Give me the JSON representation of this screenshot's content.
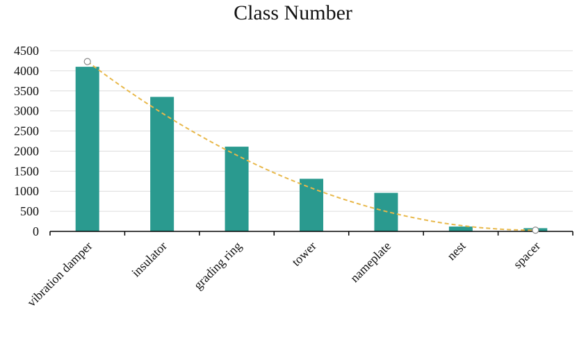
{
  "chart_data": {
    "type": "bar",
    "title": "Class Number",
    "xlabel": "",
    "ylabel": "",
    "categories": [
      "vibration damper",
      "insulator",
      "grading ring",
      "tower",
      "nameplate",
      "nest",
      "spacer"
    ],
    "values": [
      4100,
      3350,
      2110,
      1310,
      960,
      120,
      80
    ],
    "ylim": [
      0,
      4500
    ],
    "yticks": [
      "0",
      "500",
      "1000",
      "1500",
      "2000",
      "2500",
      "3000",
      "3500",
      "4000",
      "4500"
    ],
    "grid": true,
    "bar_color": "#2a9a8f",
    "trend": {
      "style": "dashed",
      "color": "#e8b84a",
      "start": {
        "category": "vibration damper",
        "value": 4230
      },
      "end": {
        "category": "spacer",
        "value": 30
      }
    }
  }
}
